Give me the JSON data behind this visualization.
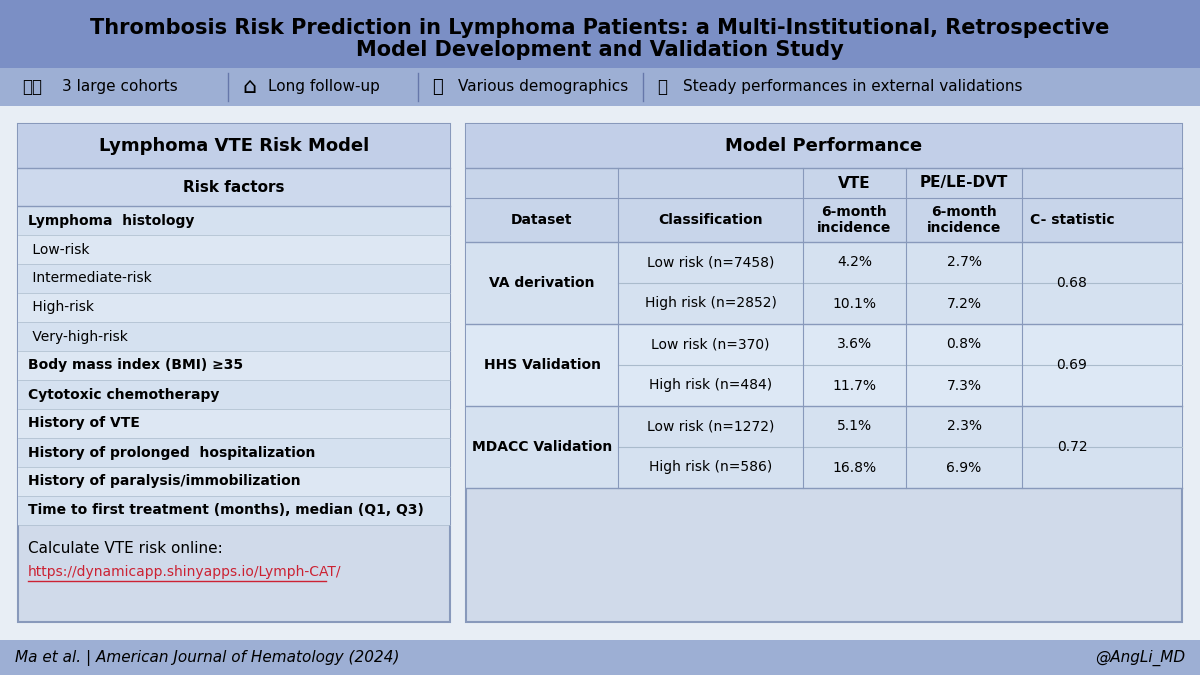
{
  "title_line1": "Thrombosis Risk Prediction in Lymphoma Patients: a Multi-Institutional, Retrospective",
  "title_line2": "Model Development and Validation Study",
  "title_bg": "#7b8fc5",
  "icon_row_bg": "#9dafd4",
  "bg_color": "#e8eef5",
  "table_bg": "#d0daea",
  "left_table_title": "Lymphoma VTE Risk Model",
  "left_table_header": "Risk factors",
  "risk_factors": [
    {
      "text": "Lymphoma  histology",
      "bold": true
    },
    {
      "text": " Low-risk",
      "bold": false
    },
    {
      "text": " Intermediate-risk",
      "bold": false
    },
    {
      "text": " High-risk",
      "bold": false
    },
    {
      "text": " Very-high-risk",
      "bold": false
    },
    {
      "text": "Body mass index (BMI) ≥35",
      "bold": true
    },
    {
      "text": "Cytotoxic chemotherapy",
      "bold": true
    },
    {
      "text": "History of VTE",
      "bold": true
    },
    {
      "text": "History of prolonged  hospitalization",
      "bold": true
    },
    {
      "text": "History of paralysis/immobilization",
      "bold": true
    },
    {
      "text": "Time to first treatment (months), median (Q1, Q3)",
      "bold": true
    }
  ],
  "calc_text": "Calculate VTE risk online:",
  "calc_url": "https://dynamicapp.shinyapps.io/Lymph-CAT/",
  "right_table_title": "Model Performance",
  "right_table_sub_headers": [
    "Dataset",
    "Classification",
    "6-month\nincidence",
    "6-month\nincidence",
    "C- statistic"
  ],
  "right_table_data": [
    [
      "VA derivation",
      "Low risk (n=7458)",
      "4.2%",
      "2.7%",
      ""
    ],
    [
      "",
      "High risk (n=2852)",
      "10.1%",
      "7.2%",
      "0.68"
    ],
    [
      "HHS Validation",
      "Low risk (n=370)",
      "3.6%",
      "0.8%",
      ""
    ],
    [
      "",
      "High risk (n=484)",
      "11.7%",
      "7.3%",
      "0.69"
    ],
    [
      "MDACC Validation",
      "Low risk (n=1272)",
      "5.1%",
      "2.3%",
      ""
    ],
    [
      "",
      "High risk (n=586)",
      "16.8%",
      "6.9%",
      "0.72"
    ]
  ],
  "dataset_groups": [
    [
      0,
      2,
      "VA derivation"
    ],
    [
      2,
      4,
      "HHS Validation"
    ],
    [
      4,
      6,
      "MDACC Validation"
    ]
  ],
  "footer_left": "Ma et al. | American Journal of Hematology (2024)",
  "footer_right": "@AngLi_MD"
}
